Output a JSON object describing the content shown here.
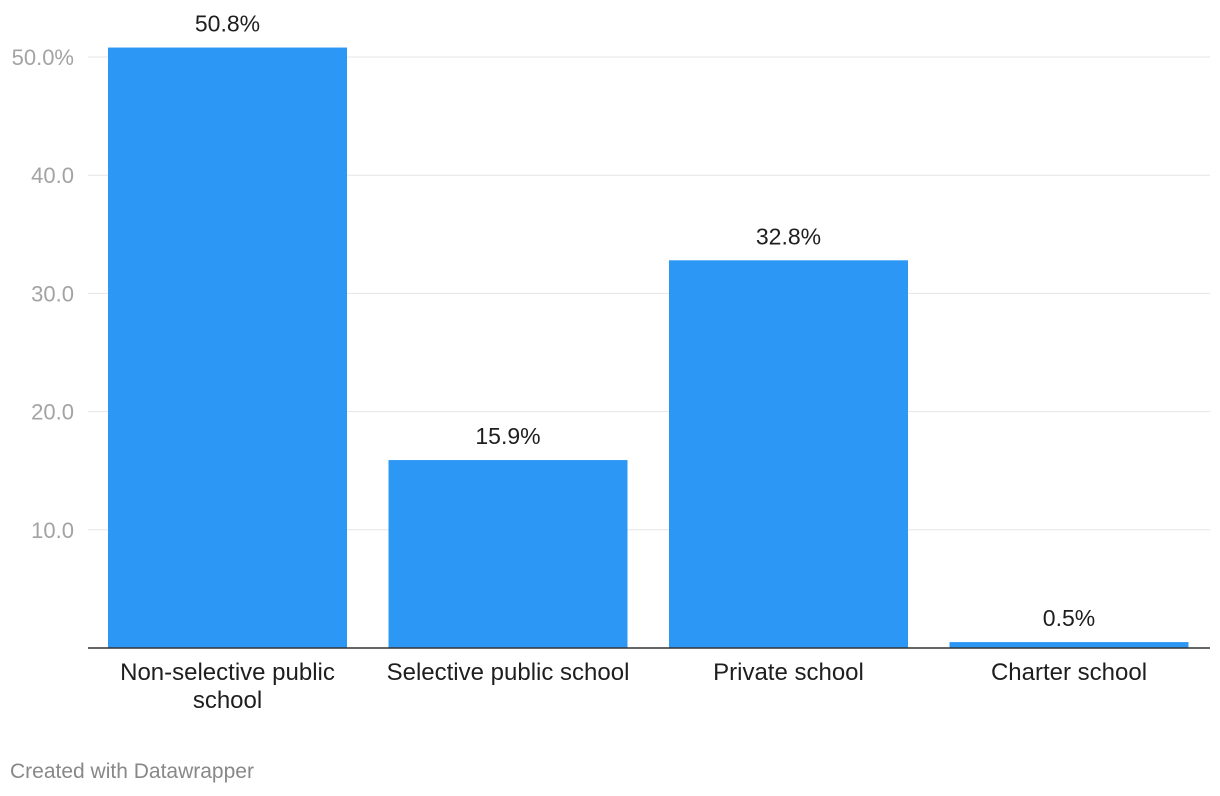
{
  "chart_data": {
    "type": "bar",
    "categories": [
      [
        "Non-selective public",
        "school"
      ],
      [
        "Selective public school"
      ],
      [
        "Private school"
      ],
      [
        "Charter school"
      ]
    ],
    "values": [
      50.8,
      15.9,
      32.8,
      0.5
    ],
    "value_labels": [
      "50.8%",
      "15.9%",
      "32.8%",
      "0.5%"
    ],
    "ylim": [
      0,
      50
    ],
    "yticks": [
      {
        "value": 10,
        "label": "10.0"
      },
      {
        "value": 20,
        "label": "20.0"
      },
      {
        "value": 30,
        "label": "30.0"
      },
      {
        "value": 40,
        "label": "40.0"
      },
      {
        "value": 50,
        "label": "50.0%"
      }
    ],
    "grid": true,
    "title": "",
    "xlabel": "",
    "ylabel": "",
    "bar_color": "#2c97f5"
  },
  "footer": {
    "credit": "Created with Datawrapper"
  }
}
